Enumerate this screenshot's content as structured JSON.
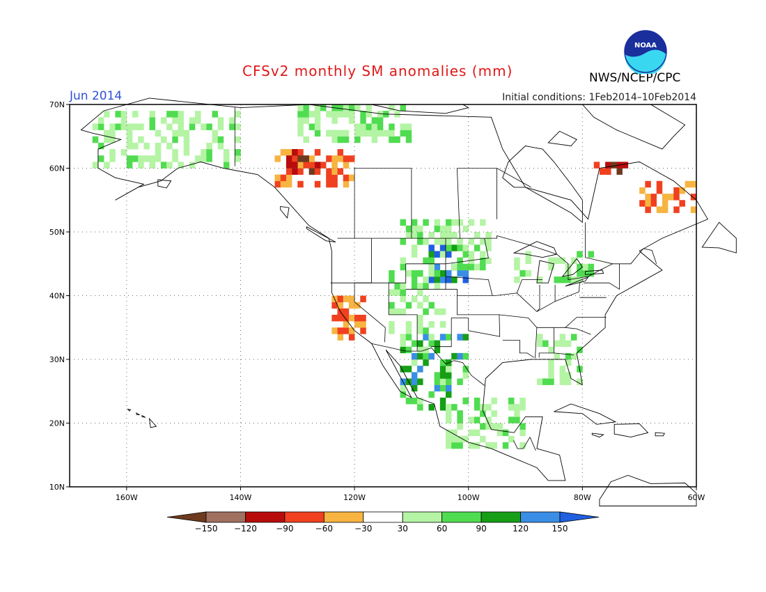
{
  "header": {
    "title": "CFSv2 monthly SM anomalies (mm)",
    "period": "Jun 2014",
    "initial_conditions": "Initial conditions: 1Feb2014–10Feb2014",
    "agency": "NWS/NCEP/CPC",
    "logo_text": "NOAA"
  },
  "map": {
    "lon_range": [
      -170,
      -60
    ],
    "lat_range": [
      10,
      70
    ],
    "lon_ticks": [
      {
        "value": -160,
        "label": "160W"
      },
      {
        "value": -140,
        "label": "140W"
      },
      {
        "value": -120,
        "label": "120W"
      },
      {
        "value": -100,
        "label": "100W"
      },
      {
        "value": -80,
        "label": "80W"
      },
      {
        "value": -60,
        "label": "60W"
      }
    ],
    "lat_ticks": [
      {
        "value": 10,
        "label": "10N"
      },
      {
        "value": 20,
        "label": "20N"
      },
      {
        "value": 30,
        "label": "30N"
      },
      {
        "value": 40,
        "label": "40N"
      },
      {
        "value": 50,
        "label": "50N"
      },
      {
        "value": 60,
        "label": "60N"
      },
      {
        "value": 70,
        "label": "70N"
      }
    ],
    "grid": "dotted"
  },
  "colorbar": {
    "levels": [
      "-150",
      "-120",
      "-90",
      "-60",
      "-30",
      "30",
      "60",
      "90",
      "120",
      "150"
    ],
    "colors": [
      "#6e3a1e",
      "#a07060",
      "#b80c0c",
      "#f04020",
      "#f7b441",
      "#ffffff",
      "#b4f4a4",
      "#50dc50",
      "#169e16",
      "#3a8ee6",
      "#2060e0"
    ]
  },
  "anomaly_regions": [
    {
      "name": "NE Mexico green",
      "lon": [
        -112,
        -100
      ],
      "lat": [
        22,
        34
      ],
      "category": 3
    },
    {
      "name": "N Plains blue",
      "lon": [
        -107,
        -100
      ],
      "lat": [
        42,
        48
      ],
      "category": 4
    },
    {
      "name": "Prairie green",
      "lon": [
        -112,
        -96
      ],
      "lat": [
        44,
        52
      ],
      "category": 2
    },
    {
      "name": "Rockies green",
      "lon": [
        -114,
        -104
      ],
      "lat": [
        34,
        44
      ],
      "category": 2
    },
    {
      "name": "Yukon orange",
      "lon": [
        -134,
        -120
      ],
      "lat": [
        57,
        63
      ],
      "category": 1
    },
    {
      "name": "Yukon red",
      "lon": [
        -132,
        -126
      ],
      "lat": [
        59,
        63
      ],
      "category": 0
    },
    {
      "name": "Alaska mixed",
      "lon": [
        -166,
        -140
      ],
      "lat": [
        60,
        69
      ],
      "category": 2
    },
    {
      "name": "Arctic green",
      "lon": [
        -130,
        -110
      ],
      "lat": [
        64,
        70
      ],
      "category": 2
    },
    {
      "name": "Labrador orange",
      "lon": [
        -70,
        -60
      ],
      "lat": [
        53,
        58
      ],
      "category": 1
    },
    {
      "name": "Quebec red",
      "lon": [
        -78,
        -72
      ],
      "lat": [
        59,
        61
      ],
      "category": 0
    },
    {
      "name": "Great Lakes green",
      "lon": [
        -92,
        -78
      ],
      "lat": [
        42,
        47
      ],
      "category": 2
    },
    {
      "name": "SE US green",
      "lon": [
        -88,
        -80
      ],
      "lat": [
        26,
        34
      ],
      "category": 2
    },
    {
      "name": "Mexico green",
      "lon": [
        -104,
        -90
      ],
      "lat": [
        16,
        24
      ],
      "category": 2
    },
    {
      "name": "California orange",
      "lon": [
        -124,
        -118
      ],
      "lat": [
        33,
        40
      ],
      "category": 1
    }
  ]
}
